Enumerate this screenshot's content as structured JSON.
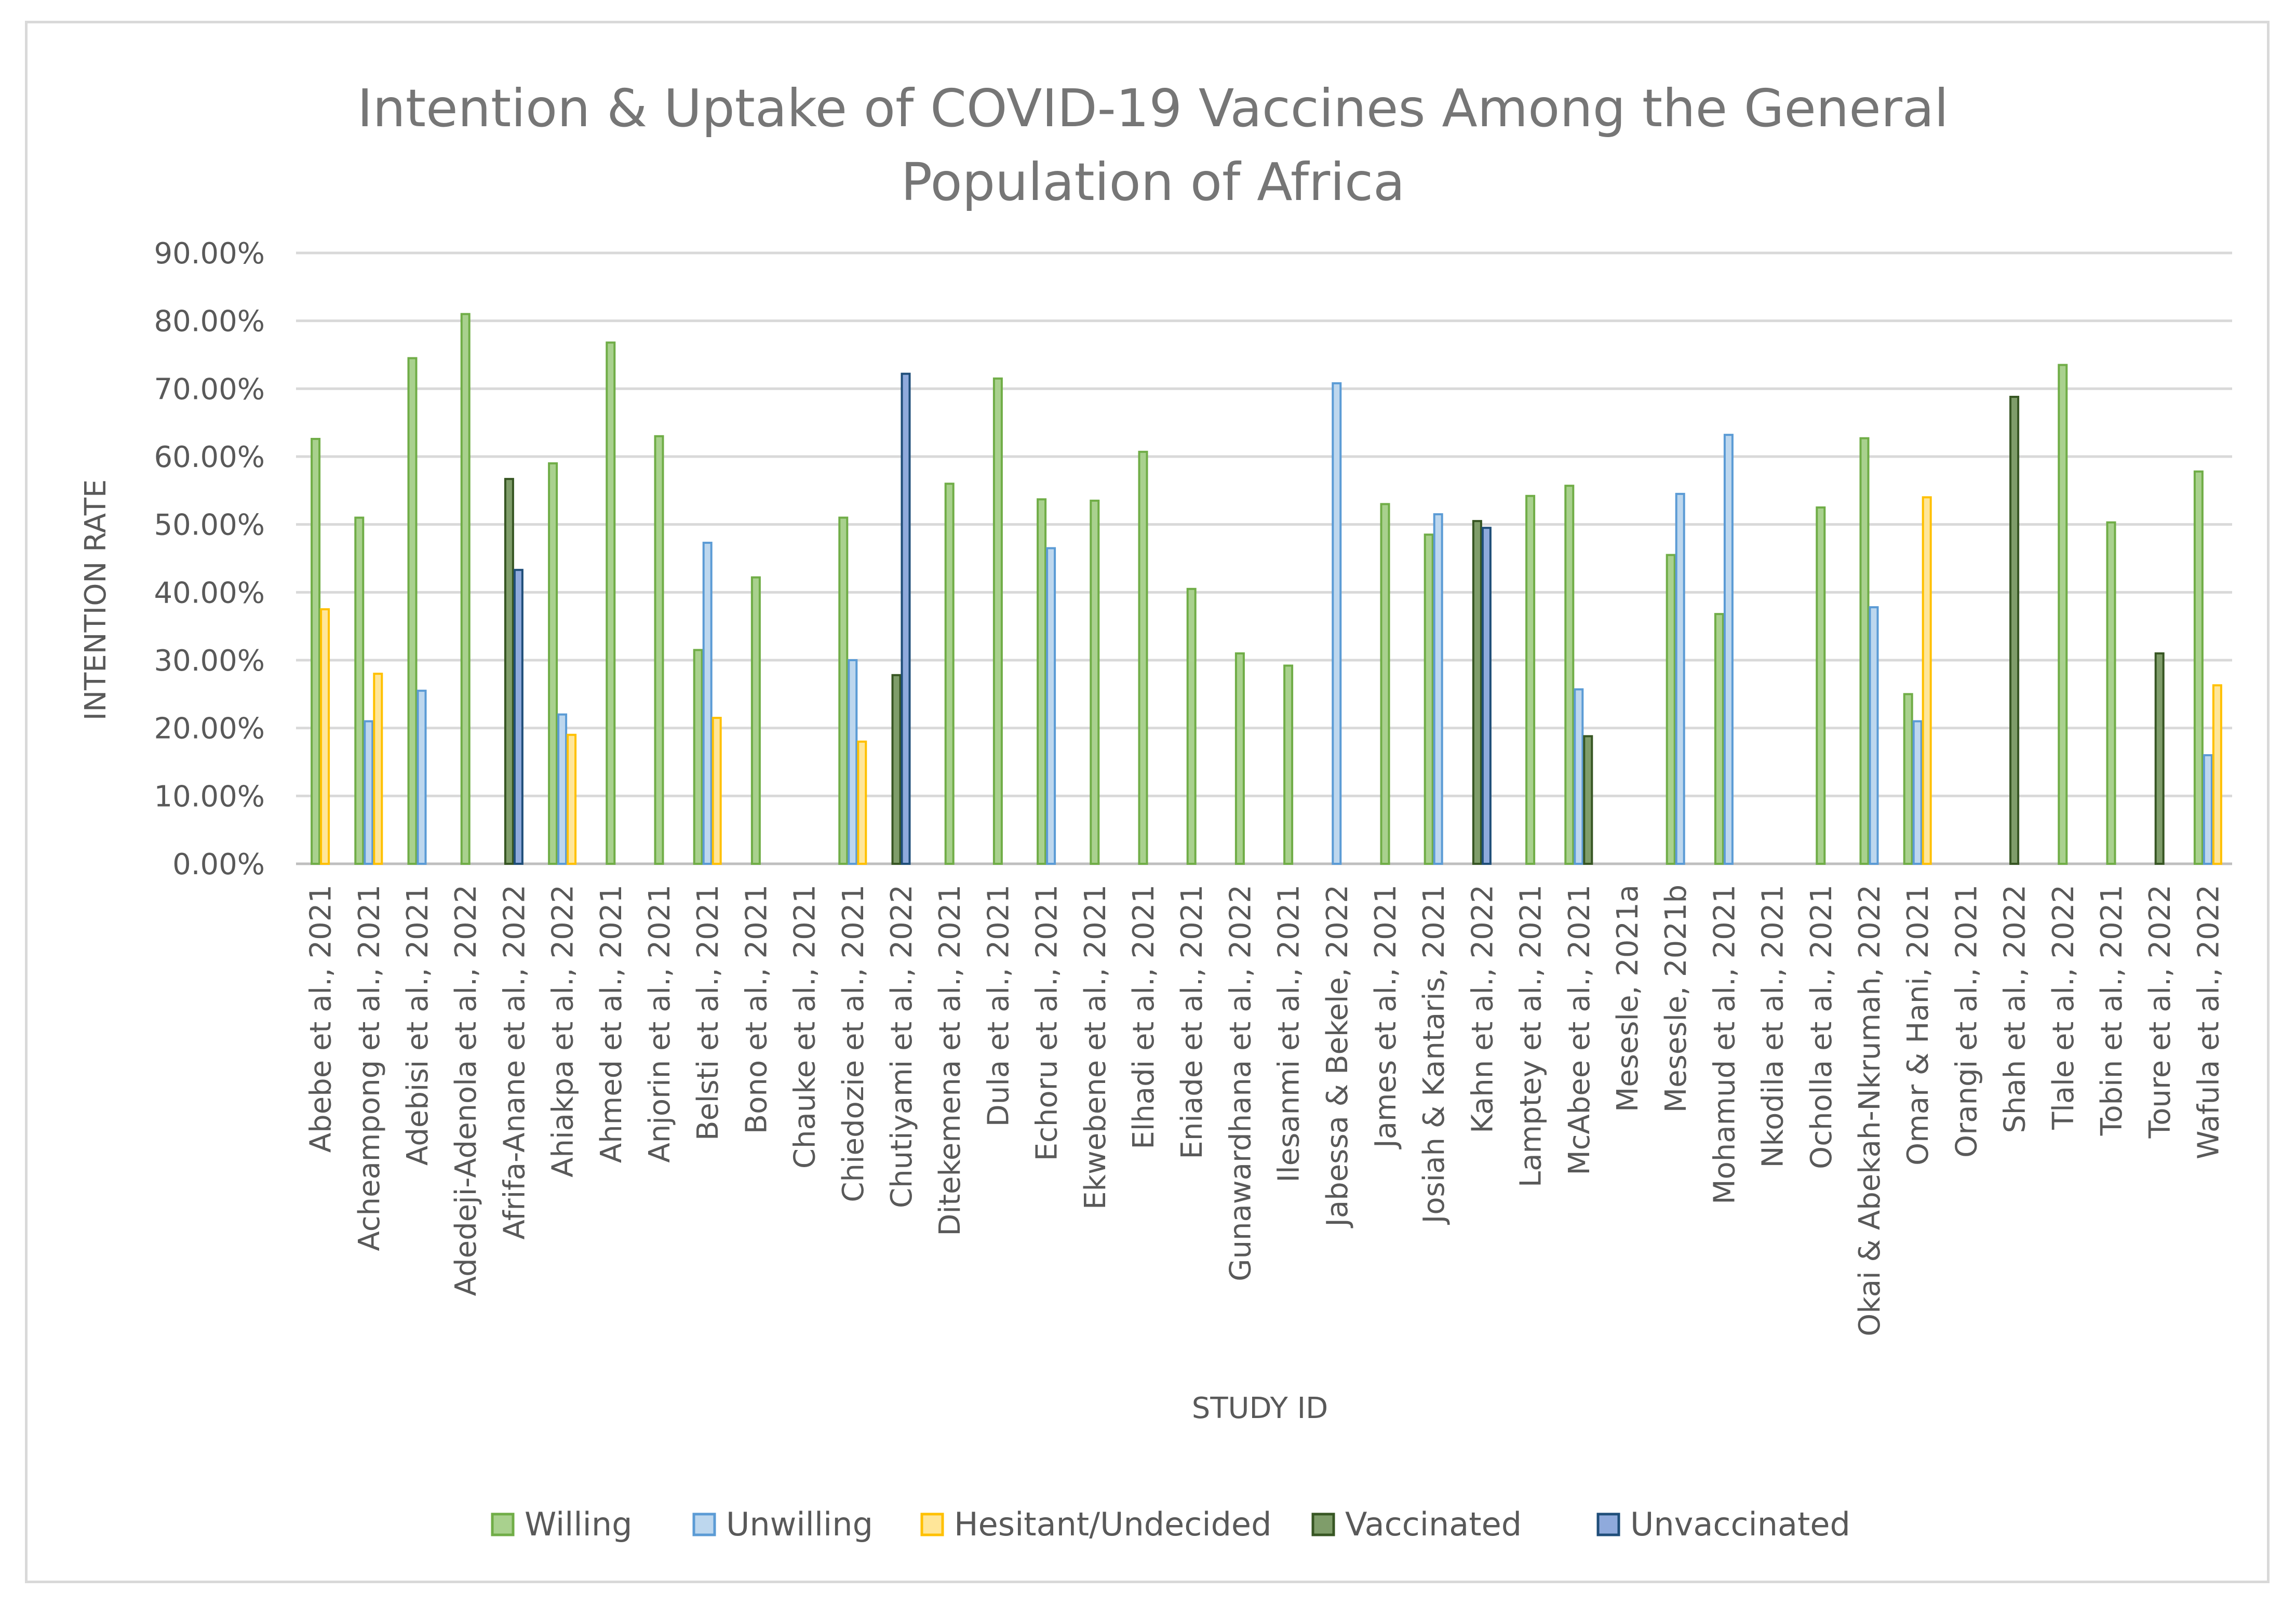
{
  "chart_data": {
    "type": "bar",
    "title_lines": [
      "Intention & Uptake of COVID-19 Vaccines Among the General",
      "Population of Africa"
    ],
    "xlabel": "STUDY ID",
    "ylabel": "INTENTION RATE",
    "ylim": [
      0,
      90
    ],
    "ytick_labels": [
      "0.00%",
      "10.00%",
      "20.00%",
      "30.00%",
      "40.00%",
      "50.00%",
      "60.00%",
      "70.00%",
      "80.00%",
      "90.00%"
    ],
    "grid": true,
    "legend_position": "bottom",
    "categories": [
      "Abebe et al., 2021",
      "Acheampong et al., 2021",
      "Adebisi et al., 2021",
      "Adedeji-Adenola et al., 2022",
      "Afrifa-Anane et al., 2022",
      "Ahiakpa et al., 2022",
      "Ahmed et al., 2021",
      "Anjorin et al., 2021",
      "Belsti et al., 2021",
      "Bono et al., 2021",
      "Chauke et al., 2021",
      "Chiedozie et al., 2021",
      "Chutiyami et al., 2022",
      "Ditekemena et al., 2021",
      "Dula et al., 2021",
      "Echoru et al., 2021",
      "Ekwebene et al., 2021",
      "Elhadi et al., 2021",
      "Eniade et al., 2021",
      "Gunawardhana et al., 2022",
      "Ilesanmi et al., 2021",
      "Jabessa & Bekele, 2022",
      "James et al., 2021",
      "Josiah & Kantaris, 2021",
      "Kahn et al., 2022",
      "Lamptey et al., 2021",
      "McAbee et al., 2021",
      "Mesesle, 2021a",
      "Mesesle, 2021b",
      "Mohamud et al., 2021",
      "Nkodila et al., 2021",
      "Ocholla et al., 2021",
      "Okai & Abekah-Nkrumah, 2022",
      "Omar & Hani, 2021",
      "Orangi et al., 2021",
      "Shah et al., 2022",
      "Tlale et al., 2022",
      "Tobin et al., 2021",
      "Toure et al., 2022",
      "Wafula et al., 2022"
    ],
    "series": [
      {
        "name": "Willing",
        "color": "#70ad47",
        "fill": "#a9d18e",
        "values": [
          62.6,
          51.0,
          74.5,
          81.0,
          null,
          59.0,
          76.8,
          63.0,
          31.5,
          42.2,
          null,
          51.0,
          null,
          56.0,
          71.5,
          53.7,
          53.5,
          60.7,
          40.5,
          31.0,
          29.2,
          null,
          53.0,
          48.5,
          null,
          54.2,
          55.7,
          null,
          45.5,
          36.8,
          null,
          52.5,
          62.7,
          25.0,
          null,
          null,
          73.5,
          50.3,
          null,
          57.8
        ]
      },
      {
        "name": "Unwilling",
        "color": "#5b9bd5",
        "fill": "#bdd7ee",
        "values": [
          null,
          21.0,
          25.5,
          null,
          null,
          22.0,
          null,
          null,
          47.3,
          null,
          null,
          30.0,
          null,
          null,
          null,
          46.5,
          null,
          null,
          null,
          null,
          null,
          70.8,
          null,
          51.5,
          null,
          null,
          25.7,
          null,
          54.5,
          63.2,
          null,
          null,
          37.8,
          21.0,
          null,
          null,
          null,
          null,
          null,
          16.0
        ]
      },
      {
        "name": "Hesitant/Undecided",
        "color": "#ffc000",
        "fill": "#ffe699",
        "values": [
          37.5,
          28.0,
          null,
          null,
          null,
          19.0,
          null,
          null,
          21.5,
          null,
          null,
          18.0,
          null,
          null,
          null,
          null,
          null,
          null,
          null,
          null,
          null,
          null,
          null,
          null,
          null,
          null,
          null,
          null,
          null,
          null,
          null,
          null,
          null,
          54.0,
          null,
          null,
          null,
          null,
          null,
          26.3
        ]
      },
      {
        "name": "Vaccinated",
        "color": "#375623",
        "fill": "#7f9d6a",
        "values": [
          null,
          null,
          null,
          null,
          56.7,
          null,
          null,
          null,
          null,
          null,
          null,
          null,
          27.8,
          null,
          null,
          null,
          null,
          null,
          null,
          null,
          null,
          null,
          null,
          null,
          50.5,
          null,
          18.8,
          null,
          null,
          null,
          null,
          null,
          null,
          null,
          null,
          68.8,
          null,
          null,
          31.0,
          null
        ]
      },
      {
        "name": "Unvaccinated",
        "color": "#1f4e79",
        "fill": "#8faadc",
        "values": [
          null,
          null,
          null,
          null,
          43.3,
          null,
          null,
          null,
          null,
          null,
          null,
          null,
          72.2,
          null,
          null,
          null,
          null,
          null,
          null,
          null,
          null,
          null,
          null,
          null,
          49.5,
          null,
          null,
          null,
          null,
          null,
          null,
          null,
          null,
          null,
          null,
          null,
          null,
          null,
          null,
          null
        ]
      }
    ]
  }
}
